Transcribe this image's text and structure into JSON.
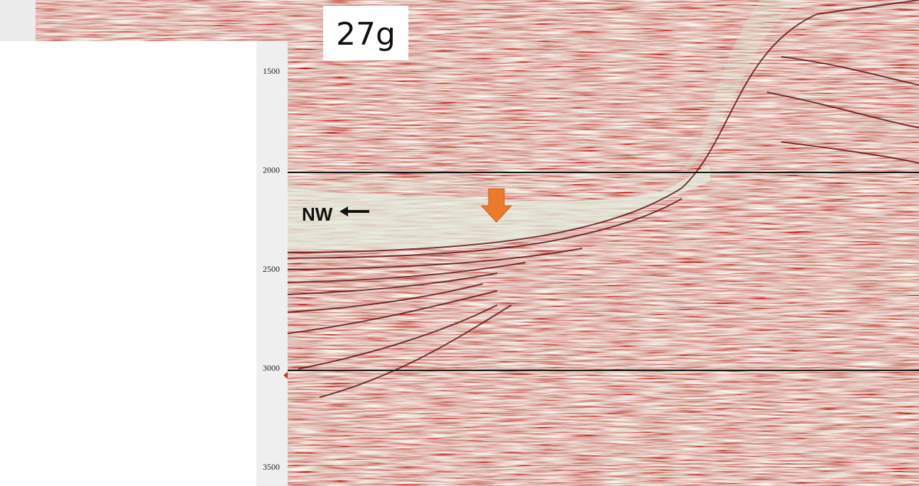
{
  "figure_label": "27g",
  "direction_label": "NW",
  "depth_axis": {
    "ticks": [
      1500,
      2000,
      2500,
      3000,
      3500
    ]
  }
}
